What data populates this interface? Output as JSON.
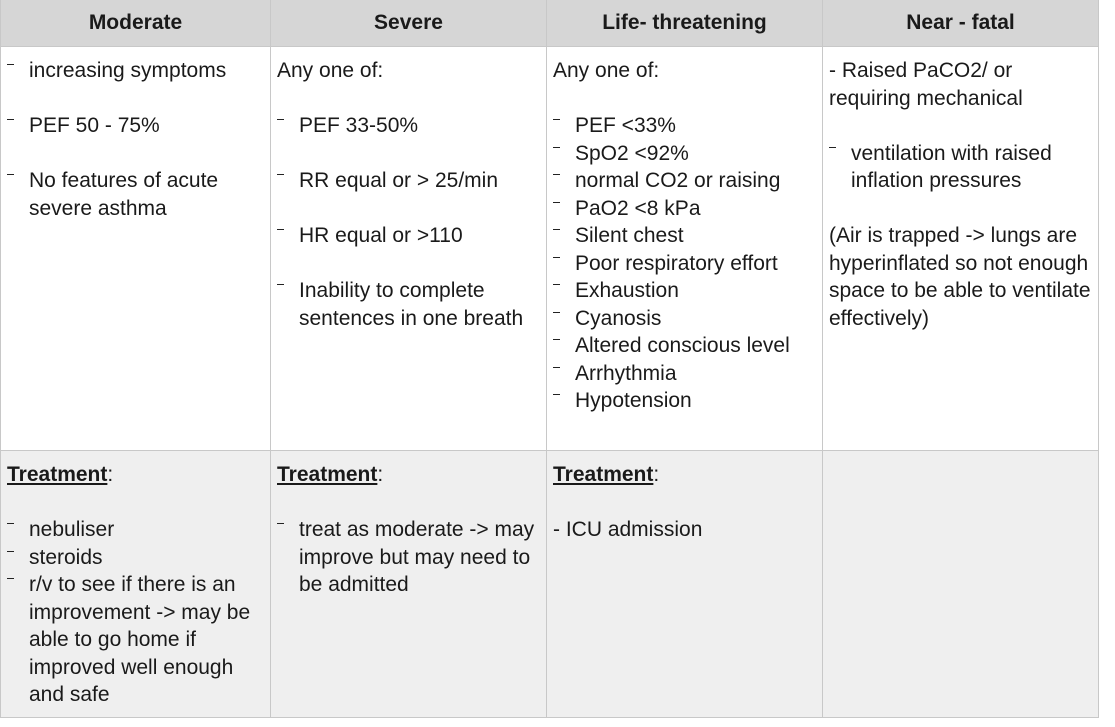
{
  "header": {
    "columns": [
      "Moderate",
      "Severe",
      "Life- threatening",
      "Near - fatal"
    ]
  },
  "rows": [
    {
      "cells": [
        {
          "blocks": [
            {
              "bullets": [
                "increasing symptoms"
              ]
            },
            {
              "bullets": [
                "PEF 50 - 75%"
              ]
            },
            {
              "bullets": [
                "No features of acute severe asthma"
              ]
            }
          ]
        },
        {
          "blocks": [
            {
              "text": "Any one of:"
            },
            {
              "bullets": [
                "PEF 33-50%"
              ]
            },
            {
              "bullets": [
                "RR equal or > 25/min"
              ]
            },
            {
              "bullets": [
                "HR equal or >110"
              ]
            },
            {
              "bullets": [
                "Inability to complete sentences in one breath"
              ]
            }
          ]
        },
        {
          "blocks": [
            {
              "text": "Any one of:"
            },
            {
              "bullets": [
                "PEF <33%",
                "SpO2 <92%",
                "normal CO2 or raising",
                "PaO2 <8 kPa",
                "Silent chest",
                "Poor respiratory effort",
                "Exhaustion",
                "Cyanosis",
                "Altered conscious level",
                "Arrhythmia",
                "Hypotension"
              ]
            }
          ]
        },
        {
          "blocks": [
            {
              "text": "- Raised PaCO2/ or requiring mechanical"
            },
            {
              "bullets": [
                "ventilation with raised inflation pressures"
              ]
            },
            {
              "text": "(Air is trapped -> lungs are hyperinflated so not enough space to be able to ventilate effectively)"
            }
          ]
        }
      ]
    },
    {
      "cells": [
        {
          "heading": {
            "label": "Treatment",
            "punct": ":"
          },
          "blocks": [
            {
              "bullets": [
                "nebuliser",
                "steroids",
                "r/v to see if there is an improvement -> may be able to go home if improved well enough and safe"
              ]
            }
          ]
        },
        {
          "heading": {
            "label": "Treatment",
            "punct": ":"
          },
          "blocks": [
            {
              "bullets": [
                "treat as moderate -> may improve but may need to be admitted"
              ]
            }
          ]
        },
        {
          "heading": {
            "label": "Treatment",
            "punct": ":"
          },
          "blocks": [
            {
              "text": "- ICU admission"
            }
          ]
        },
        {
          "blocks": []
        }
      ]
    }
  ]
}
